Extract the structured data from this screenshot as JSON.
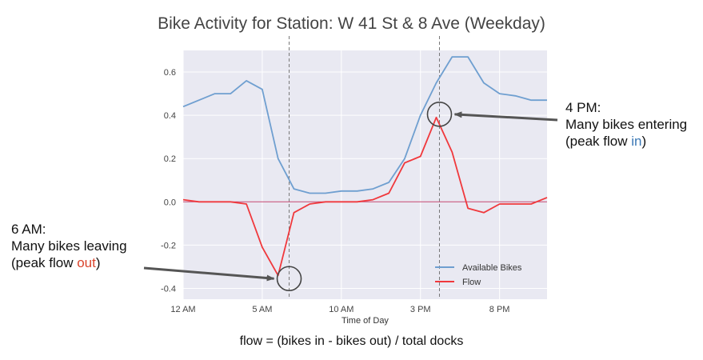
{
  "title": "Bike Activity for Station: W 41 St & 8 Ave (Weekday)",
  "chart_data": {
    "type": "line",
    "xlabel": "Time of Day",
    "ylabel": "",
    "xlim": [
      0,
      23
    ],
    "ylim": [
      -0.45,
      0.7
    ],
    "x_ticks": [
      {
        "value": 0,
        "label": "12 AM"
      },
      {
        "value": 5,
        "label": "5 AM"
      },
      {
        "value": 10,
        "label": "10 AM"
      },
      {
        "value": 15,
        "label": "3 PM"
      },
      {
        "value": 20,
        "label": "8 PM"
      }
    ],
    "y_ticks": [
      {
        "value": 0.6,
        "label": "0.6"
      },
      {
        "value": 0.4,
        "label": "0.4"
      },
      {
        "value": 0.2,
        "label": "0.2"
      },
      {
        "value": 0.0,
        "label": "0.0"
      },
      {
        "value": -0.2,
        "label": "-0.2"
      },
      {
        "value": -0.4,
        "label": "-0.4"
      }
    ],
    "grid": true,
    "legend_position": "bottom-right",
    "x": [
      0,
      1,
      2,
      3,
      4,
      5,
      6,
      7,
      8,
      9,
      10,
      11,
      12,
      13,
      14,
      15,
      16,
      17,
      18,
      19,
      20,
      21,
      22,
      23
    ],
    "series": [
      {
        "name": "Available Bikes",
        "color": "#6f9fd0",
        "values": [
          0.44,
          0.47,
          0.5,
          0.5,
          0.56,
          0.52,
          0.2,
          0.06,
          0.04,
          0.04,
          0.05,
          0.05,
          0.06,
          0.09,
          0.2,
          0.4,
          0.55,
          0.67,
          0.67,
          0.55,
          0.5,
          0.49,
          0.47,
          0.47
        ]
      },
      {
        "name": "Flow",
        "color": "#f0383c",
        "values": [
          0.01,
          0.0,
          0.0,
          0.0,
          -0.01,
          -0.21,
          -0.34,
          -0.05,
          -0.01,
          0.0,
          0.0,
          0.0,
          0.01,
          0.04,
          0.18,
          0.21,
          0.39,
          0.23,
          -0.03,
          -0.05,
          -0.01,
          -0.01,
          -0.01,
          0.02
        ]
      }
    ],
    "reference_lines": [
      {
        "type": "vertical",
        "x": 6.7,
        "style": "dashed",
        "color": "#777777"
      },
      {
        "type": "vertical",
        "x": 16.2,
        "style": "dashed",
        "color": "#777777"
      },
      {
        "type": "horizontal",
        "y": 0.0,
        "color": "#c0436e"
      }
    ],
    "annotations": [
      {
        "lines": [
          "4 PM:",
          "Many bikes entering"
        ],
        "prefix": "(peak flow ",
        "highlight": "in",
        "suffix": ")",
        "highlight_color": "#3a78b5",
        "points_to": {
          "x": 16.2,
          "y": 0.39
        }
      },
      {
        "lines": [
          "6 AM:",
          "Many bikes leaving"
        ],
        "prefix": "(peak flow ",
        "highlight": "out",
        "suffix": ")",
        "highlight_color": "#d9432b",
        "points_to": {
          "x": 6.7,
          "y": -0.34
        }
      }
    ]
  },
  "footer": "flow = (bikes in - bikes out) / total docks"
}
